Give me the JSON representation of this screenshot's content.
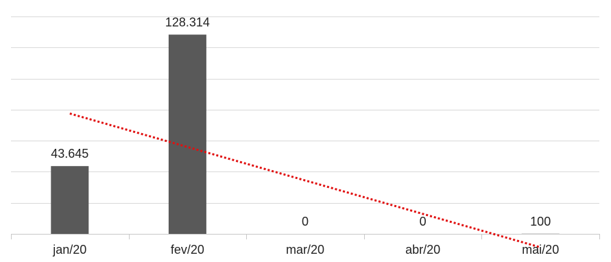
{
  "colors": {
    "bar": "#595959",
    "trendline": "#e01010",
    "grid": "#d9d9d9",
    "axis": "#c8c8c8",
    "text": "#222222"
  },
  "chart_data": {
    "type": "bar",
    "categories": [
      "jan/20",
      "fev/20",
      "mar/20",
      "abr/20",
      "mai/20"
    ],
    "values": [
      43645,
      128314,
      0,
      0,
      100
    ],
    "data_labels": [
      "43.645",
      "128.314",
      "0",
      "0",
      "100"
    ],
    "ylim": [
      0,
      140000
    ],
    "y_gridline_step": 20000,
    "grid": true,
    "y_axis_labels_shown": false,
    "legend": "none",
    "trendline": {
      "type": "linear",
      "style": "dotted",
      "color": "#e01010"
    }
  }
}
